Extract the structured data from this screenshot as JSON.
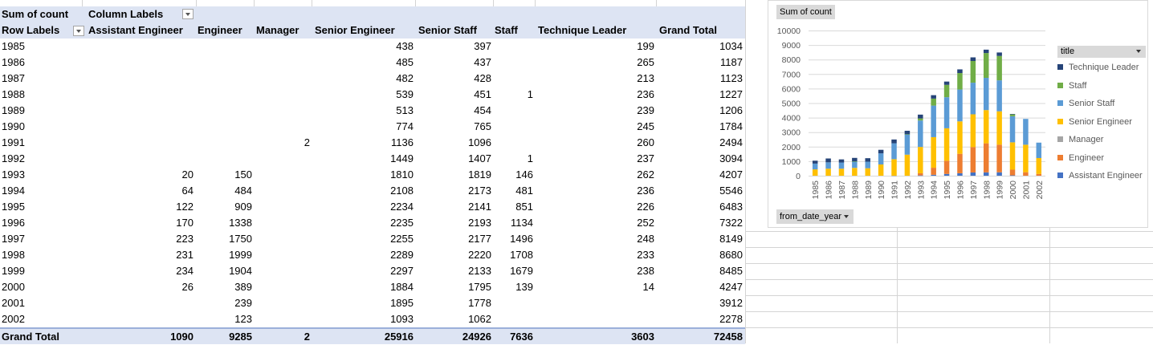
{
  "pivot": {
    "value_field": "Sum of count",
    "column_labels_caption": "Column Labels",
    "row_labels_caption": "Row Labels",
    "columns": [
      "Assistant Engineer",
      "Engineer",
      "Manager",
      "Senior Engineer",
      "Senior Staff",
      "Staff",
      "Technique Leader",
      "Grand Total"
    ],
    "rows": [
      {
        "label": "1985",
        "values": [
          "",
          "",
          "",
          "438",
          "397",
          "",
          "199",
          "1034"
        ]
      },
      {
        "label": "1986",
        "values": [
          "",
          "",
          "",
          "485",
          "437",
          "",
          "265",
          "1187"
        ]
      },
      {
        "label": "1987",
        "values": [
          "",
          "",
          "",
          "482",
          "428",
          "",
          "213",
          "1123"
        ]
      },
      {
        "label": "1988",
        "values": [
          "",
          "",
          "",
          "539",
          "451",
          "1",
          "236",
          "1227"
        ]
      },
      {
        "label": "1989",
        "values": [
          "",
          "",
          "",
          "513",
          "454",
          "",
          "239",
          "1206"
        ]
      },
      {
        "label": "1990",
        "values": [
          "",
          "",
          "",
          "774",
          "765",
          "",
          "245",
          "1784"
        ]
      },
      {
        "label": "1991",
        "values": [
          "",
          "",
          "2",
          "1136",
          "1096",
          "",
          "260",
          "2494"
        ]
      },
      {
        "label": "1992",
        "values": [
          "",
          "",
          "",
          "1449",
          "1407",
          "1",
          "237",
          "3094"
        ]
      },
      {
        "label": "1993",
        "values": [
          "20",
          "150",
          "",
          "1810",
          "1819",
          "146",
          "262",
          "4207"
        ]
      },
      {
        "label": "1994",
        "values": [
          "64",
          "484",
          "",
          "2108",
          "2173",
          "481",
          "236",
          "5546"
        ]
      },
      {
        "label": "1995",
        "values": [
          "122",
          "909",
          "",
          "2234",
          "2141",
          "851",
          "226",
          "6483"
        ]
      },
      {
        "label": "1996",
        "values": [
          "170",
          "1338",
          "",
          "2235",
          "2193",
          "1134",
          "252",
          "7322"
        ]
      },
      {
        "label": "1997",
        "values": [
          "223",
          "1750",
          "",
          "2255",
          "2177",
          "1496",
          "248",
          "8149"
        ]
      },
      {
        "label": "1998",
        "values": [
          "231",
          "1999",
          "",
          "2289",
          "2220",
          "1708",
          "233",
          "8680"
        ]
      },
      {
        "label": "1999",
        "values": [
          "234",
          "1904",
          "",
          "2297",
          "2133",
          "1679",
          "238",
          "8485"
        ]
      },
      {
        "label": "2000",
        "values": [
          "26",
          "389",
          "",
          "1884",
          "1795",
          "139",
          "14",
          "4247"
        ]
      },
      {
        "label": "2001",
        "values": [
          "",
          "239",
          "",
          "1895",
          "1778",
          "",
          "",
          "3912"
        ]
      },
      {
        "label": "2002",
        "values": [
          "",
          "123",
          "",
          "1093",
          "1062",
          "",
          "",
          "2278"
        ]
      }
    ],
    "grand_total": {
      "label": "Grand Total",
      "values": [
        "1090",
        "9285",
        "2",
        "25916",
        "24926",
        "7636",
        "3603",
        "72458"
      ]
    }
  },
  "chart": {
    "value_button": "Sum of count",
    "axis_button": "from_date_year",
    "legend_title": "title"
  },
  "chart_data": {
    "type": "bar",
    "stacked": true,
    "categories": [
      "1985",
      "1986",
      "1987",
      "1988",
      "1989",
      "1990",
      "1991",
      "1992",
      "1993",
      "1994",
      "1995",
      "1996",
      "1997",
      "1998",
      "1999",
      "2000",
      "2001",
      "2002"
    ],
    "series": [
      {
        "name": "Assistant Engineer",
        "color": "#4472c4",
        "values": [
          0,
          0,
          0,
          0,
          0,
          0,
          0,
          0,
          20,
          64,
          122,
          170,
          223,
          231,
          234,
          26,
          0,
          0
        ]
      },
      {
        "name": "Engineer",
        "color": "#ed7d31",
        "values": [
          0,
          0,
          0,
          0,
          0,
          0,
          0,
          0,
          150,
          484,
          909,
          1338,
          1750,
          1999,
          1904,
          389,
          239,
          123
        ]
      },
      {
        "name": "Manager",
        "color": "#a5a5a5",
        "values": [
          0,
          0,
          0,
          0,
          0,
          0,
          2,
          0,
          0,
          0,
          0,
          0,
          0,
          0,
          0,
          0,
          0,
          0
        ]
      },
      {
        "name": "Senior Engineer",
        "color": "#ffc000",
        "values": [
          438,
          485,
          482,
          539,
          513,
          774,
          1136,
          1449,
          1810,
          2108,
          2234,
          2235,
          2255,
          2289,
          2297,
          1884,
          1895,
          1093
        ]
      },
      {
        "name": "Senior Staff",
        "color": "#5b9bd5",
        "values": [
          397,
          437,
          428,
          451,
          454,
          765,
          1096,
          1407,
          1819,
          2173,
          2141,
          2193,
          2177,
          2220,
          2133,
          1795,
          1778,
          1062
        ]
      },
      {
        "name": "Staff",
        "color": "#70ad47",
        "values": [
          0,
          0,
          0,
          1,
          0,
          0,
          0,
          1,
          146,
          481,
          851,
          1134,
          1496,
          1708,
          1679,
          139,
          0,
          0
        ]
      },
      {
        "name": "Technique Leader",
        "color": "#264478",
        "values": [
          199,
          265,
          213,
          236,
          239,
          245,
          260,
          237,
          262,
          236,
          226,
          252,
          248,
          233,
          238,
          14,
          0,
          0
        ]
      }
    ],
    "ylim": [
      0,
      10000
    ],
    "yticks": [
      "0",
      "1000",
      "2000",
      "3000",
      "4000",
      "5000",
      "6000",
      "7000",
      "8000",
      "9000",
      "10000"
    ],
    "grid": true,
    "legend_position": "right"
  }
}
